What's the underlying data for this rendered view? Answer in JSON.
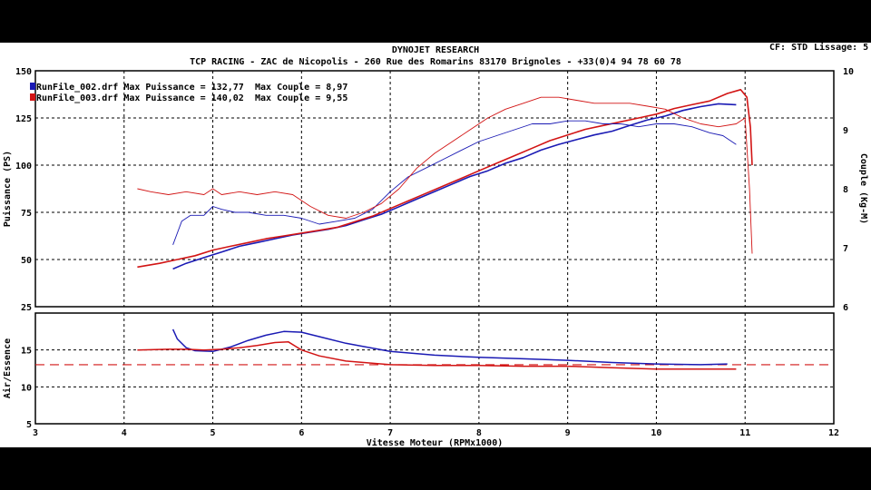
{
  "header": {
    "title": "DYNOJET RESEARCH",
    "subtitle": "TCP RACING - ZAC de Nicopolis - 260 Rue des Romarins 83170 Brignoles - +33(0)4 94 78 60 78",
    "cf": "CF: STD",
    "smoothing": "Lissage: 5"
  },
  "chart_data": [
    {
      "type": "line",
      "name": "power-torque",
      "xlabel": "Vitesse Moteur (RPMx1000)",
      "ylabel": "Puissance (PS)",
      "y2label": "Couple (Kg-M)",
      "xlim": [
        3,
        12
      ],
      "ylim": [
        25,
        150
      ],
      "y2lim": [
        6,
        10
      ],
      "xticks": [
        "3",
        "4",
        "5",
        "6",
        "7",
        "8",
        "9",
        "10",
        "11",
        "12"
      ],
      "yticks": [
        "25",
        "50",
        "75",
        "100",
        "125",
        "150"
      ],
      "y2ticks": [
        "6",
        "7",
        "8",
        "9",
        "10"
      ],
      "grid": true,
      "legend": [
        {
          "label": "RunFile_002.drf Max Puissance = 132,77",
          "torque": "Max Couple = 8,97",
          "color": "#1a1ab4"
        },
        {
          "label": "RunFile_003.drf Max Puissance = 140,02",
          "torque": "Max Couple = 9,55",
          "color": "#d21414"
        }
      ],
      "series": [
        {
          "name": "RunFile_002.drf",
          "measure": "power",
          "axis": "left",
          "color": "#1a1ab4",
          "x": [
            4.55,
            4.7,
            4.9,
            5.1,
            5.3,
            5.5,
            5.7,
            5.9,
            6.1,
            6.3,
            6.5,
            6.7,
            6.9,
            7.1,
            7.3,
            7.5,
            7.7,
            7.9,
            8.1,
            8.3,
            8.5,
            8.7,
            8.9,
            9.1,
            9.3,
            9.5,
            9.7,
            9.9,
            10.1,
            10.3,
            10.5,
            10.7,
            10.9
          ],
          "y": [
            45,
            48,
            51,
            54,
            57,
            59,
            61,
            63,
            64.5,
            66,
            68,
            71,
            74,
            78,
            82,
            86,
            90,
            94,
            97,
            101,
            104,
            108,
            111,
            113.5,
            116,
            118,
            121,
            124,
            126,
            129,
            131,
            132.5,
            132
          ]
        },
        {
          "name": "RunFile_003.drf",
          "measure": "power",
          "axis": "left",
          "color": "#d21414",
          "x": [
            4.15,
            4.4,
            4.6,
            4.8,
            5.0,
            5.2,
            5.4,
            5.6,
            5.8,
            6.0,
            6.2,
            6.4,
            6.6,
            6.8,
            7.0,
            7.2,
            7.4,
            7.6,
            7.8,
            8.0,
            8.2,
            8.4,
            8.6,
            8.8,
            9.0,
            9.2,
            9.4,
            9.6,
            9.8,
            10.0,
            10.2,
            10.4,
            10.6,
            10.8,
            10.95,
            11.02,
            11.06,
            11.08
          ],
          "y": [
            46,
            48,
            50,
            52,
            55,
            57,
            59,
            61,
            62.5,
            64,
            65.5,
            67,
            70,
            73,
            77,
            81,
            85,
            89,
            93,
            97,
            101,
            105,
            109,
            113,
            116,
            119,
            121,
            123,
            125,
            127,
            130,
            132,
            134,
            138,
            140,
            136,
            120,
            100
          ]
        },
        {
          "name": "RunFile_002.drf",
          "measure": "torque",
          "axis": "right",
          "color": "#1a1ab4",
          "x": [
            4.55,
            4.65,
            4.75,
            4.9,
            5.0,
            5.1,
            5.25,
            5.4,
            5.6,
            5.8,
            6.0,
            6.2,
            6.4,
            6.6,
            6.8,
            7.0,
            7.2,
            7.4,
            7.6,
            7.8,
            8.0,
            8.2,
            8.4,
            8.6,
            8.8,
            9.0,
            9.2,
            9.4,
            9.6,
            9.8,
            10.0,
            10.2,
            10.4,
            10.6,
            10.75,
            10.9
          ],
          "y": [
            7.05,
            7.45,
            7.55,
            7.55,
            7.7,
            7.65,
            7.6,
            7.6,
            7.55,
            7.55,
            7.5,
            7.4,
            7.45,
            7.5,
            7.65,
            7.95,
            8.2,
            8.35,
            8.5,
            8.65,
            8.8,
            8.9,
            9.0,
            9.1,
            9.1,
            9.15,
            9.15,
            9.1,
            9.1,
            9.05,
            9.1,
            9.1,
            9.05,
            8.95,
            8.9,
            8.75
          ]
        },
        {
          "name": "RunFile_003.drf",
          "measure": "torque",
          "axis": "right",
          "color": "#d21414",
          "x": [
            4.15,
            4.3,
            4.5,
            4.7,
            4.9,
            5.0,
            5.1,
            5.3,
            5.5,
            5.7,
            5.9,
            6.1,
            6.3,
            6.5,
            6.7,
            6.9,
            7.1,
            7.3,
            7.5,
            7.7,
            7.9,
            8.1,
            8.3,
            8.5,
            8.7,
            8.9,
            9.1,
            9.3,
            9.5,
            9.7,
            9.9,
            10.1,
            10.3,
            10.5,
            10.7,
            10.9,
            11.0,
            11.05,
            11.08
          ],
          "y": [
            8.0,
            7.95,
            7.9,
            7.95,
            7.9,
            8.0,
            7.9,
            7.95,
            7.9,
            7.95,
            7.9,
            7.7,
            7.55,
            7.5,
            7.6,
            7.75,
            8.0,
            8.35,
            8.6,
            8.8,
            9.0,
            9.2,
            9.35,
            9.45,
            9.55,
            9.55,
            9.5,
            9.45,
            9.45,
            9.45,
            9.4,
            9.35,
            9.2,
            9.1,
            9.05,
            9.1,
            9.2,
            8.0,
            6.9
          ]
        }
      ]
    },
    {
      "type": "line",
      "name": "air-fuel",
      "xlabel": "Vitesse Moteur (RPMx1000)",
      "ylabel": "Air/Essence",
      "xlim": [
        3,
        12
      ],
      "ylim": [
        5,
        20
      ],
      "yticks": [
        "5",
        "10",
        "15"
      ],
      "xticks": [
        "3",
        "4",
        "5",
        "6",
        "7",
        "8",
        "9",
        "10",
        "11",
        "12"
      ],
      "grid": true,
      "reference_line": 13.0,
      "series": [
        {
          "name": "RunFile_002.drf",
          "color": "#1a1ab4",
          "x": [
            4.55,
            4.6,
            4.7,
            4.8,
            5.0,
            5.2,
            5.4,
            5.6,
            5.8,
            6.0,
            6.2,
            6.5,
            7.0,
            7.5,
            8.0,
            8.5,
            9.0,
            9.5,
            10.0,
            10.5,
            10.8
          ],
          "y": [
            17.8,
            16.5,
            15.3,
            14.9,
            14.8,
            15.4,
            16.3,
            17.0,
            17.5,
            17.4,
            16.8,
            15.9,
            14.8,
            14.3,
            14.0,
            13.8,
            13.6,
            13.3,
            13.1,
            13.0,
            13.1
          ]
        },
        {
          "name": "RunFile_003.drf",
          "color": "#d21414",
          "x": [
            4.15,
            4.5,
            4.7,
            4.9,
            5.1,
            5.3,
            5.5,
            5.7,
            5.85,
            6.0,
            6.2,
            6.5,
            7.0,
            7.5,
            8.0,
            8.5,
            9.0,
            9.5,
            10.0,
            10.5,
            10.9
          ],
          "y": [
            15.0,
            15.1,
            15.1,
            15.0,
            15.1,
            15.3,
            15.6,
            16.0,
            16.1,
            15.0,
            14.2,
            13.5,
            13.0,
            12.9,
            12.9,
            12.8,
            12.8,
            12.6,
            12.4,
            12.4,
            12.4
          ]
        }
      ]
    }
  ]
}
